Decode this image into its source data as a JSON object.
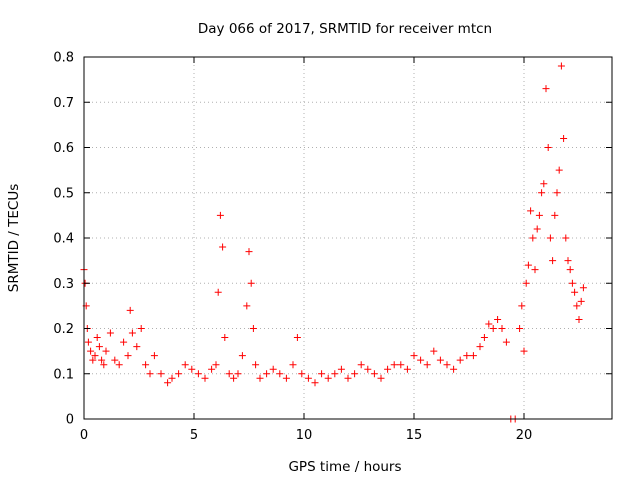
{
  "chart_data": {
    "type": "scatter",
    "title": "Day 066 of 2017, SRMTID for receiver mtcn",
    "xlabel": "GPS time / hours",
    "ylabel": "SRMTID / TECUs",
    "xlim": [
      0,
      24
    ],
    "ylim": [
      0,
      0.8
    ],
    "xticks": [
      0,
      5,
      10,
      15,
      20
    ],
    "xtick_labels": [
      "0",
      "5",
      "10",
      "15",
      "20"
    ],
    "yticks": [
      0,
      0.1,
      0.2,
      0.3,
      0.4,
      0.5,
      0.6,
      0.7,
      0.8
    ],
    "ytick_labels": [
      "0",
      "0.1",
      "0.2",
      "0.3",
      "0.4",
      "0.5",
      "0.6",
      "0.7",
      "0.8"
    ],
    "grid": true,
    "marker": "+",
    "marker_color": "#ff0000",
    "series": [
      {
        "name": "SRMTID",
        "x": [
          0.0,
          0.05,
          0.1,
          0.15,
          0.2,
          0.3,
          0.4,
          0.5,
          0.6,
          0.7,
          0.8,
          0.9,
          1.0,
          1.2,
          1.4,
          1.6,
          1.8,
          2.0,
          2.1,
          2.2,
          2.4,
          2.6,
          2.8,
          3.0,
          3.2,
          3.5,
          3.8,
          4.0,
          4.3,
          4.6,
          4.9,
          5.2,
          5.5,
          5.8,
          6.0,
          6.1,
          6.2,
          6.3,
          6.4,
          6.6,
          6.8,
          7.0,
          7.2,
          7.4,
          7.5,
          7.6,
          7.7,
          7.8,
          8.0,
          8.3,
          8.6,
          8.9,
          9.2,
          9.5,
          9.7,
          9.9,
          10.2,
          10.5,
          10.8,
          11.1,
          11.4,
          11.7,
          12.0,
          12.3,
          12.6,
          12.9,
          13.2,
          13.5,
          13.8,
          14.1,
          14.4,
          14.7,
          15.0,
          15.3,
          15.6,
          15.9,
          16.2,
          16.5,
          16.8,
          17.1,
          17.4,
          17.7,
          18.0,
          18.2,
          18.4,
          18.6,
          18.8,
          19.0,
          19.2,
          19.4,
          19.6,
          19.8,
          19.9,
          20.0,
          20.1,
          20.2,
          20.3,
          20.4,
          20.5,
          20.6,
          20.7,
          20.8,
          20.9,
          21.0,
          21.1,
          21.2,
          21.3,
          21.4,
          21.5,
          21.6,
          21.7,
          21.8,
          21.9,
          22.0,
          22.1,
          22.2,
          22.3,
          22.4,
          22.5,
          22.6,
          22.7
        ],
        "y": [
          0.33,
          0.3,
          0.25,
          0.2,
          0.17,
          0.15,
          0.13,
          0.14,
          0.18,
          0.16,
          0.13,
          0.12,
          0.15,
          0.19,
          0.13,
          0.12,
          0.17,
          0.14,
          0.24,
          0.19,
          0.16,
          0.2,
          0.12,
          0.1,
          0.14,
          0.1,
          0.08,
          0.09,
          0.1,
          0.12,
          0.11,
          0.1,
          0.09,
          0.11,
          0.12,
          0.28,
          0.45,
          0.38,
          0.18,
          0.1,
          0.09,
          0.1,
          0.14,
          0.25,
          0.37,
          0.3,
          0.2,
          0.12,
          0.09,
          0.1,
          0.11,
          0.1,
          0.09,
          0.12,
          0.18,
          0.1,
          0.09,
          0.08,
          0.1,
          0.09,
          0.1,
          0.11,
          0.09,
          0.1,
          0.12,
          0.11,
          0.1,
          0.09,
          0.11,
          0.12,
          0.12,
          0.11,
          0.14,
          0.13,
          0.12,
          0.15,
          0.13,
          0.12,
          0.11,
          0.13,
          0.14,
          0.14,
          0.16,
          0.18,
          0.21,
          0.2,
          0.22,
          0.2,
          0.17,
          0.0,
          0.0,
          0.2,
          0.25,
          0.15,
          0.3,
          0.34,
          0.46,
          0.4,
          0.33,
          0.42,
          0.45,
          0.5,
          0.52,
          0.73,
          0.6,
          0.4,
          0.35,
          0.45,
          0.5,
          0.55,
          0.78,
          0.62,
          0.4,
          0.35,
          0.33,
          0.3,
          0.28,
          0.25,
          0.22,
          0.26,
          0.29
        ]
      }
    ]
  }
}
